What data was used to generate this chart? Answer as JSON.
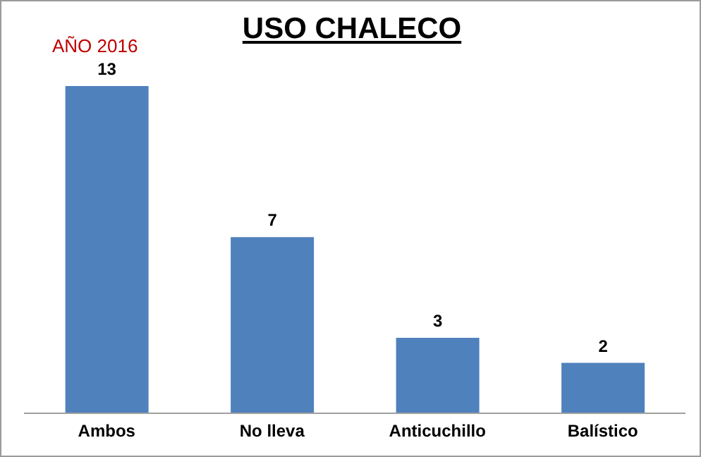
{
  "chart_data": {
    "type": "bar",
    "title": "USO CHALECO",
    "subtitle": "AÑO 2016",
    "categories": [
      "Ambos",
      "No lleva",
      "Anticuchillo",
      "Balístico"
    ],
    "values": [
      13,
      7,
      3,
      2
    ],
    "color": "#4f81bd",
    "data_labels": true,
    "grid": false,
    "legend": false
  }
}
